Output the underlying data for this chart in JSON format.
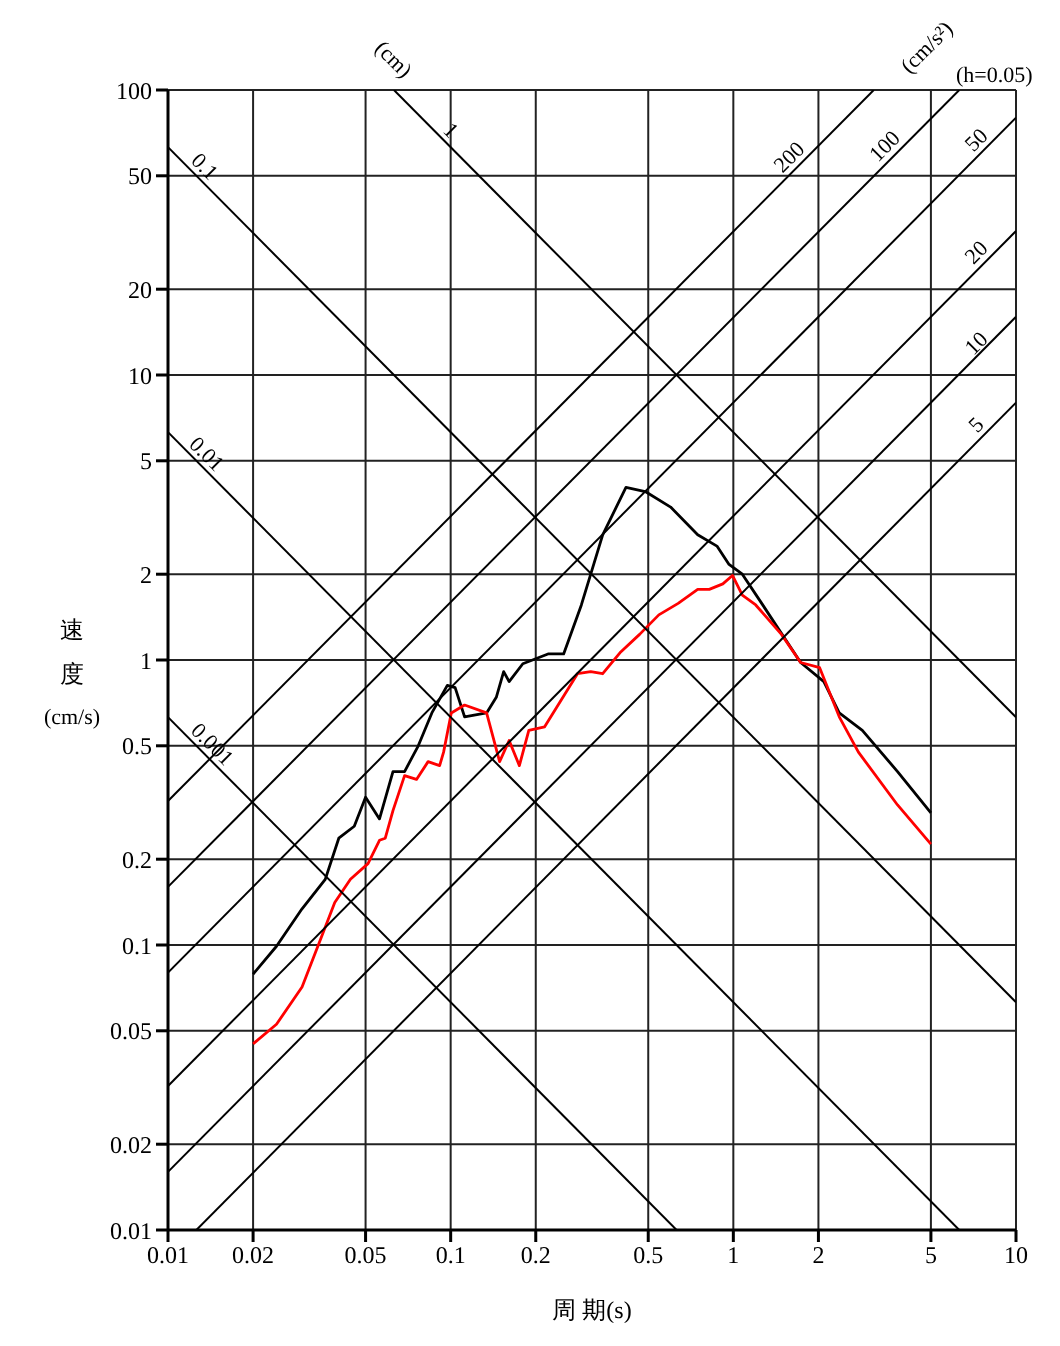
{
  "chart_data": {
    "type": "line",
    "xlabel": "周 期(s)",
    "ylabel": "速度 (cm/s)",
    "log": "xy",
    "grid": true,
    "marker": "none",
    "line_style": "solid",
    "xlim": [
      0.01,
      10
    ],
    "ylim": [
      0.01,
      100
    ],
    "xticks": [
      0.01,
      0.02,
      0.05,
      0.1,
      0.2,
      0.5,
      1,
      2,
      5,
      10
    ],
    "yticks": [
      0.01,
      0.02,
      0.05,
      0.1,
      0.2,
      0.5,
      1,
      2,
      5,
      10,
      20,
      50,
      100
    ],
    "series": [
      {
        "color": "#000000",
        "x": [
          0.02,
          0.0242,
          0.0298,
          0.036,
          0.0402,
          0.0456,
          0.05,
          0.056,
          0.0625,
          0.0687,
          0.0768,
          0.0858,
          0.0973,
          0.1037,
          0.112,
          0.134,
          0.145,
          0.154,
          0.161,
          0.18,
          0.221,
          0.251,
          0.29,
          0.345,
          0.417,
          0.488,
          0.6,
          0.748,
          0.875,
          0.963,
          1.076,
          1.26,
          1.73,
          2.09,
          2.37,
          2.86,
          3.81,
          5.0
        ],
        "values": [
          0.079,
          0.099,
          0.134,
          0.17,
          0.237,
          0.261,
          0.33,
          0.277,
          0.406,
          0.406,
          0.5,
          0.652,
          0.815,
          0.8,
          0.632,
          0.652,
          0.74,
          0.91,
          0.84,
          0.97,
          1.05,
          1.05,
          1.56,
          2.75,
          4.03,
          3.9,
          3.44,
          2.75,
          2.51,
          2.17,
          2.0,
          1.58,
          0.98,
          0.84,
          0.652,
          0.566,
          0.406,
          0.291
        ]
      },
      {
        "color": "#ff0000",
        "x": [
          0.02,
          0.0242,
          0.0298,
          0.0343,
          0.0389,
          0.0442,
          0.051,
          0.056,
          0.0587,
          0.0625,
          0.0687,
          0.0757,
          0.0832,
          0.0914,
          0.0944,
          0.1005,
          0.112,
          0.134,
          0.149,
          0.161,
          0.175,
          0.189,
          0.215,
          0.281,
          0.313,
          0.345,
          0.397,
          0.466,
          0.545,
          0.638,
          0.748,
          0.822,
          0.918,
          0.993,
          1.076,
          1.2,
          1.48,
          1.73,
          2.02,
          2.37,
          2.77,
          3.81,
          5.0
        ],
        "values": [
          0.045,
          0.0527,
          0.0712,
          0.102,
          0.141,
          0.17,
          0.193,
          0.233,
          0.237,
          0.296,
          0.393,
          0.381,
          0.44,
          0.426,
          0.475,
          0.652,
          0.695,
          0.652,
          0.44,
          0.522,
          0.426,
          0.566,
          0.583,
          0.895,
          0.91,
          0.895,
          1.06,
          1.23,
          1.44,
          1.58,
          1.77,
          1.77,
          1.85,
          1.98,
          1.69,
          1.56,
          1.23,
          0.98,
          0.94,
          0.632,
          0.475,
          0.31,
          0.226
        ]
      },
      {
        "color": "#000000",
        "x": [
          0.01,
          0.63
        ],
        "values": [
          0.63,
          0.01
        ]
      },
      {
        "color": "#000000",
        "x": [
          0.01,
          6.3
        ],
        "values": [
          6.3,
          0.01
        ]
      },
      {
        "color": "#000000",
        "x": [
          0.01,
          10
        ],
        "values": [
          63,
          0.063
        ]
      },
      {
        "color": "#000000",
        "x": [
          0.063,
          10
        ],
        "values": [
          100,
          0.63
        ]
      },
      {
        "color": "#000000",
        "x": [
          0.01,
          3.14
        ],
        "values": [
          0.32,
          100
        ]
      },
      {
        "color": "#000000",
        "x": [
          0.01,
          6.3
        ],
        "values": [
          0.16,
          100
        ]
      },
      {
        "color": "#000000",
        "x": [
          0.01,
          10
        ],
        "values": [
          0.08,
          80
        ]
      },
      {
        "color": "#000000",
        "x": [
          0.01,
          10
        ],
        "values": [
          0.032,
          32
        ]
      },
      {
        "color": "#000000",
        "x": [
          0.01,
          10
        ],
        "values": [
          0.016,
          16
        ]
      },
      {
        "color": "#000000",
        "x": [
          0.0126,
          10
        ],
        "values": [
          0.01,
          8
        ]
      }
    ],
    "annotations": [
      "(cm)",
      "(cm/s²)",
      "(h=0.05)",
      {
        "text": "0.1",
        "x": 0.0125,
        "y": 50
      },
      {
        "text": "0.01",
        "x": 0.0127,
        "y": 4.9
      },
      {
        "text": "0.001",
        "x": 0.0133,
        "y": 0.47
      },
      {
        "text": "1",
        "x": 0.093,
        "y": 67
      },
      {
        "text": "200",
        "x": 1.7,
        "y": 54
      },
      {
        "text": "100",
        "x": 3.7,
        "y": 59
      },
      {
        "text": "50",
        "x": 7.8,
        "y": 62
      },
      {
        "text": "20",
        "x": 7.8,
        "y": 25
      },
      {
        "text": "10",
        "x": 7.8,
        "y": 12
      },
      {
        "text": "5",
        "x": 7.8,
        "y": 6.2
      }
    ]
  }
}
